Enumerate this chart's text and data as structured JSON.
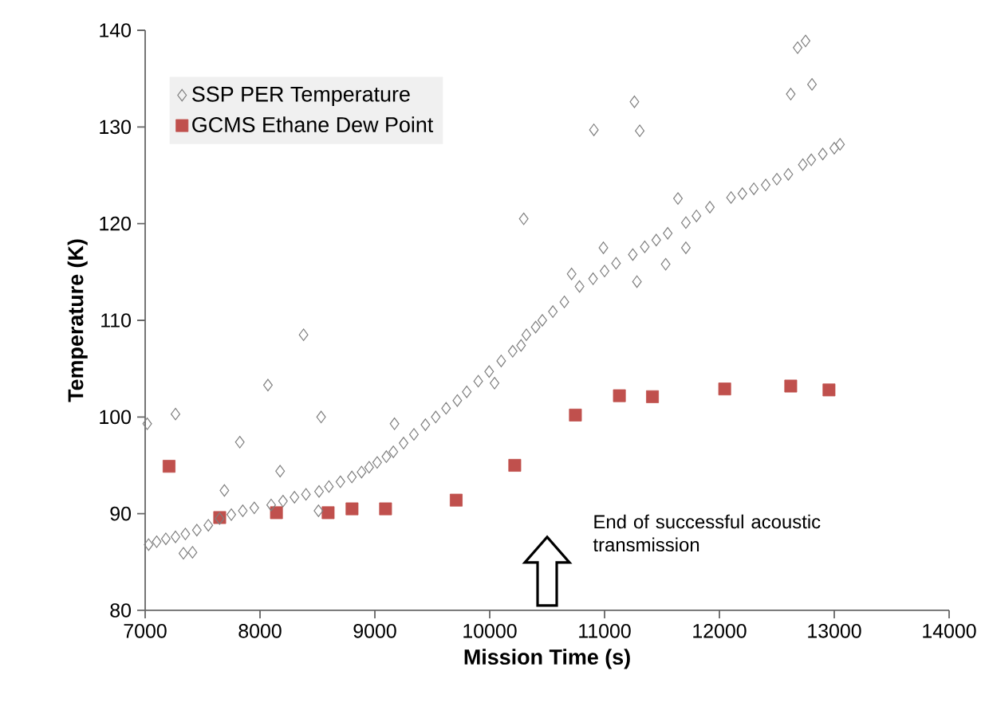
{
  "chart_data": {
    "type": "scatter",
    "xlabel": "Mission Time (s)",
    "ylabel": "Temperature (K)",
    "xlim": [
      7000,
      14000
    ],
    "ylim": [
      80,
      140
    ],
    "xticks": [
      7000,
      8000,
      9000,
      10000,
      11000,
      12000,
      13000,
      14000
    ],
    "yticks": [
      80,
      90,
      100,
      110,
      120,
      130,
      140
    ],
    "grid": false,
    "legend": "top left",
    "annotations": [
      "End of successful acoustic transmission"
    ],
    "series": [
      {
        "name": "SSP PER Temperature",
        "color": "#7f7f7f",
        "marker": "diamond",
        "x": [
          7030,
          7100,
          7180,
          7264,
          7350,
          7450,
          7550,
          7648,
          7750,
          7850,
          7950,
          8097,
          8200,
          8300,
          8400,
          8514,
          8600,
          8700,
          8800,
          8884,
          8950,
          9020,
          9100,
          9161,
          9250,
          9340,
          9440,
          9530,
          9620,
          9718,
          9800,
          9900,
          9995,
          10100,
          10200,
          10273,
          10319,
          10400,
          10458,
          10550,
          10650,
          10782,
          10900,
          11000,
          11100,
          11246,
          11350,
          11450,
          11550,
          11708,
          11800,
          11917,
          12101,
          12200,
          12300,
          12403,
          12500,
          12600,
          12726,
          12800,
          12900,
          13000,
          13050,
          7018,
          7264,
          7333,
          7412,
          7690,
          7824,
          8069,
          8175,
          8379,
          8532,
          8509,
          9171,
          10042,
          10296,
          10713,
          10990,
          10907,
          11260,
          11306,
          11282,
          11532,
          11639,
          11708,
          12621,
          12681,
          12750,
          12806
        ],
        "values": [
          86.8,
          87.1,
          87.4,
          87.6,
          87.9,
          88.3,
          88.8,
          89.5,
          89.9,
          90.3,
          90.6,
          90.9,
          91.3,
          91.7,
          92.0,
          92.3,
          92.8,
          93.3,
          93.8,
          94.3,
          94.8,
          95.3,
          95.9,
          96.4,
          97.3,
          98.2,
          99.2,
          100.0,
          100.9,
          101.7,
          102.6,
          103.7,
          104.7,
          105.8,
          106.8,
          107.4,
          108.5,
          109.3,
          110.0,
          110.9,
          111.9,
          113.5,
          114.3,
          115.1,
          115.9,
          116.8,
          117.6,
          118.3,
          119.0,
          120.1,
          120.8,
          121.7,
          122.7,
          123.1,
          123.6,
          124.0,
          124.6,
          125.1,
          126.1,
          126.6,
          127.2,
          127.8,
          128.2,
          99.3,
          100.3,
          85.9,
          86.0,
          92.4,
          97.4,
          103.3,
          94.4,
          108.5,
          100.0,
          90.3,
          99.3,
          103.5,
          120.5,
          114.8,
          117.5,
          129.7,
          132.6,
          129.6,
          114.0,
          115.8,
          122.6,
          117.5,
          133.4,
          138.2,
          138.9,
          134.4
        ]
      },
      {
        "name": "GCMS Ethane Dew Point",
        "color": "#c0504d",
        "marker": "square",
        "x": [
          7208,
          7649,
          8143,
          8593,
          8801,
          9093,
          9708,
          10218,
          10746,
          11129,
          11417,
          12046,
          12621,
          12954
        ],
        "values": [
          94.9,
          89.6,
          90.1,
          90.1,
          90.5,
          90.5,
          91.4,
          95.0,
          100.2,
          102.2,
          102.1,
          102.9,
          103.2,
          102.8
        ]
      }
    ]
  }
}
